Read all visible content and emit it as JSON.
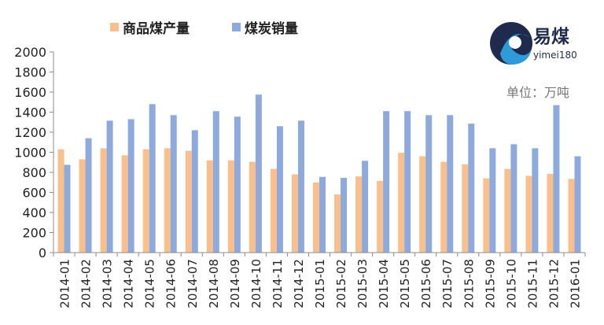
{
  "chart_data": {
    "type": "bar",
    "categories": [
      "2014-01",
      "2014-02",
      "2014-03",
      "2014-04",
      "2014-05",
      "2014-06",
      "2014-07",
      "2014-08",
      "2014-09",
      "2014-10",
      "2014-11",
      "2014-12",
      "2015-01",
      "2015-02",
      "2015-03",
      "2015-04",
      "2015-05",
      "2015-06",
      "2015-07",
      "2015-08",
      "2015-09",
      "2015-10",
      "2015-11",
      "2015-12",
      "2016-01"
    ],
    "series": [
      {
        "name": "商品煤产量",
        "color": "#f9c08e",
        "values": [
          1030,
          930,
          1040,
          970,
          1030,
          1040,
          1015,
          920,
          920,
          905,
          835,
          780,
          700,
          580,
          760,
          715,
          995,
          960,
          905,
          880,
          740,
          835,
          765,
          785,
          735
        ]
      },
      {
        "name": "煤炭销量",
        "color": "#8ea9db",
        "values": [
          875,
          1140,
          1315,
          1330,
          1480,
          1370,
          1220,
          1410,
          1355,
          1575,
          1260,
          1315,
          755,
          745,
          915,
          1410,
          1410,
          1370,
          1370,
          1285,
          1040,
          1080,
          1040,
          1470,
          960
        ]
      }
    ],
    "ylim": [
      0,
      2000
    ],
    "yticks": [
      0,
      200,
      400,
      600,
      800,
      1000,
      1200,
      1400,
      1600,
      1800,
      2000
    ],
    "grid": false,
    "legend_position": "top-left"
  },
  "logo": {
    "text": "易煤",
    "subtext": "yimei180"
  },
  "unit_label": "单位：万吨"
}
